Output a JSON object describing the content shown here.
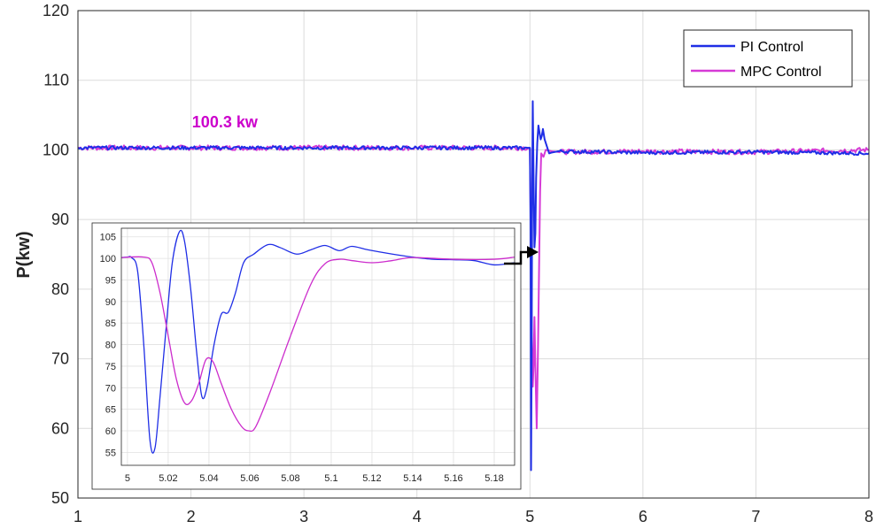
{
  "chart_data": [
    {
      "type": "line",
      "role": "main",
      "title": "",
      "xlabel": "",
      "ylabel": "P(kw)",
      "xlim": [
        1,
        8
      ],
      "ylim": [
        50,
        120
      ],
      "x_ticks": [
        "1",
        "2",
        "3",
        "4",
        "5",
        "6",
        "7",
        "8"
      ],
      "y_ticks": [
        "50",
        "60",
        "70",
        "80",
        "90",
        "100",
        "110",
        "120"
      ],
      "grid": true,
      "legend": {
        "placement": "top-right",
        "entries": [
          "PI Control",
          "MPC Control"
        ]
      },
      "annotations": [
        {
          "text": "100.3 kw",
          "x": 2.3,
          "y": 103.2,
          "color": "#cc00cc"
        }
      ],
      "series": [
        {
          "name": "PI Control",
          "color": "#1f2ee6",
          "noise": 0.25,
          "points": [
            [
              1,
              100.3
            ],
            [
              4.98,
              100.3
            ],
            [
              5.0,
              100.3
            ],
            [
              5.005,
              90
            ],
            [
              5.01,
              54
            ],
            [
              5.015,
              70
            ],
            [
              5.02,
              95
            ],
            [
              5.025,
              107
            ],
            [
              5.033,
              95
            ],
            [
              5.04,
              86
            ],
            [
              5.048,
              88
            ],
            [
              5.055,
              96
            ],
            [
              5.065,
              101
            ],
            [
              5.075,
              103.5
            ],
            [
              5.085,
              102.5
            ],
            [
              5.095,
              101.5
            ],
            [
              5.105,
              102
            ],
            [
              5.115,
              103
            ],
            [
              5.13,
              101.5
            ],
            [
              5.15,
              100.5
            ],
            [
              5.17,
              99.5
            ],
            [
              5.19,
              99.6
            ],
            [
              5.25,
              99.8
            ],
            [
              6,
              99.6
            ],
            [
              7,
              99.7
            ],
            [
              8,
              99.5
            ]
          ]
        },
        {
          "name": "MPC Control",
          "color": "#d63ad6",
          "noise": 0.35,
          "points": [
            [
              1,
              100.3
            ],
            [
              4.99,
              100.3
            ],
            [
              5.0,
              100.1
            ],
            [
              5.008,
              88
            ],
            [
              5.016,
              74
            ],
            [
              5.025,
              66
            ],
            [
              5.032,
              69
            ],
            [
              5.04,
              76
            ],
            [
              5.048,
              69
            ],
            [
              5.06,
              60
            ],
            [
              5.072,
              72
            ],
            [
              5.09,
              94
            ],
            [
              5.1,
              99.5
            ],
            [
              5.12,
              99
            ],
            [
              5.14,
              100
            ],
            [
              5.19,
              99.8
            ],
            [
              5.25,
              99.7
            ],
            [
              6,
              99.8
            ],
            [
              7,
              99.7
            ],
            [
              8,
              100
            ]
          ]
        }
      ]
    },
    {
      "type": "line",
      "role": "inset",
      "title": "",
      "xlabel": "",
      "ylabel": "",
      "xlim": [
        4.997,
        5.19
      ],
      "ylim": [
        52,
        107
      ],
      "x_ticks": [
        "5",
        "5.02",
        "5.04",
        "5.06",
        "5.08",
        "5.1",
        "5.12",
        "5.14",
        "5.16",
        "5.18"
      ],
      "y_ticks": [
        "55",
        "60",
        "65",
        "70",
        "75",
        "80",
        "85",
        "90",
        "95",
        "100",
        "105"
      ],
      "grid": true,
      "series": [
        {
          "name": "PI Control",
          "color": "#1f2ee6",
          "points": [
            [
              4.997,
              100.2
            ],
            [
              5.0,
              100.3
            ],
            [
              5.002,
              100.2
            ],
            [
              5.005,
              97
            ],
            [
              5.008,
              80
            ],
            [
              5.011,
              58
            ],
            [
              5.0135,
              56
            ],
            [
              5.016,
              68
            ],
            [
              5.019,
              84
            ],
            [
              5.022,
              99
            ],
            [
              5.0255,
              106.2
            ],
            [
              5.028,
              104
            ],
            [
              5.031,
              93
            ],
            [
              5.034,
              78
            ],
            [
              5.0365,
              68
            ],
            [
              5.039,
              70
            ],
            [
              5.0425,
              80
            ],
            [
              5.046,
              87
            ],
            [
              5.0495,
              87.5
            ],
            [
              5.053,
              92
            ],
            [
              5.057,
              99
            ],
            [
              5.062,
              101
            ],
            [
              5.069,
              103.2
            ],
            [
              5.075,
              102.5
            ],
            [
              5.083,
              101
            ],
            [
              5.09,
              102
            ],
            [
              5.097,
              103
            ],
            [
              5.104,
              101.8
            ],
            [
              5.11,
              102.8
            ],
            [
              5.118,
              102
            ],
            [
              5.13,
              101
            ],
            [
              5.14,
              100.3
            ],
            [
              5.15,
              99.8
            ],
            [
              5.16,
              99.7
            ],
            [
              5.17,
              99.5
            ],
            [
              5.18,
              98.5
            ],
            [
              5.19,
              99
            ]
          ]
        },
        {
          "name": "MPC Control",
          "color": "#cc2ccc",
          "points": [
            [
              4.997,
              100.2
            ],
            [
              5.008,
              100.3
            ],
            [
              5.012,
              99
            ],
            [
              5.016,
              92
            ],
            [
              5.02,
              82
            ],
            [
              5.024,
              72
            ],
            [
              5.028,
              66.5
            ],
            [
              5.0315,
              67
            ],
            [
              5.035,
              71
            ],
            [
              5.0385,
              76.5
            ],
            [
              5.042,
              76
            ],
            [
              5.046,
              71
            ],
            [
              5.051,
              65
            ],
            [
              5.056,
              61
            ],
            [
              5.0595,
              60
            ],
            [
              5.063,
              61
            ],
            [
              5.07,
              69
            ],
            [
              5.08,
              82
            ],
            [
              5.09,
              94
            ],
            [
              5.097,
              98.8
            ],
            [
              5.104,
              99.8
            ],
            [
              5.11,
              99.5
            ],
            [
              5.12,
              99
            ],
            [
              5.13,
              99.5
            ],
            [
              5.14,
              100.2
            ],
            [
              5.16,
              99.8
            ],
            [
              5.18,
              99.8
            ],
            [
              5.19,
              100.3
            ]
          ]
        }
      ]
    }
  ]
}
